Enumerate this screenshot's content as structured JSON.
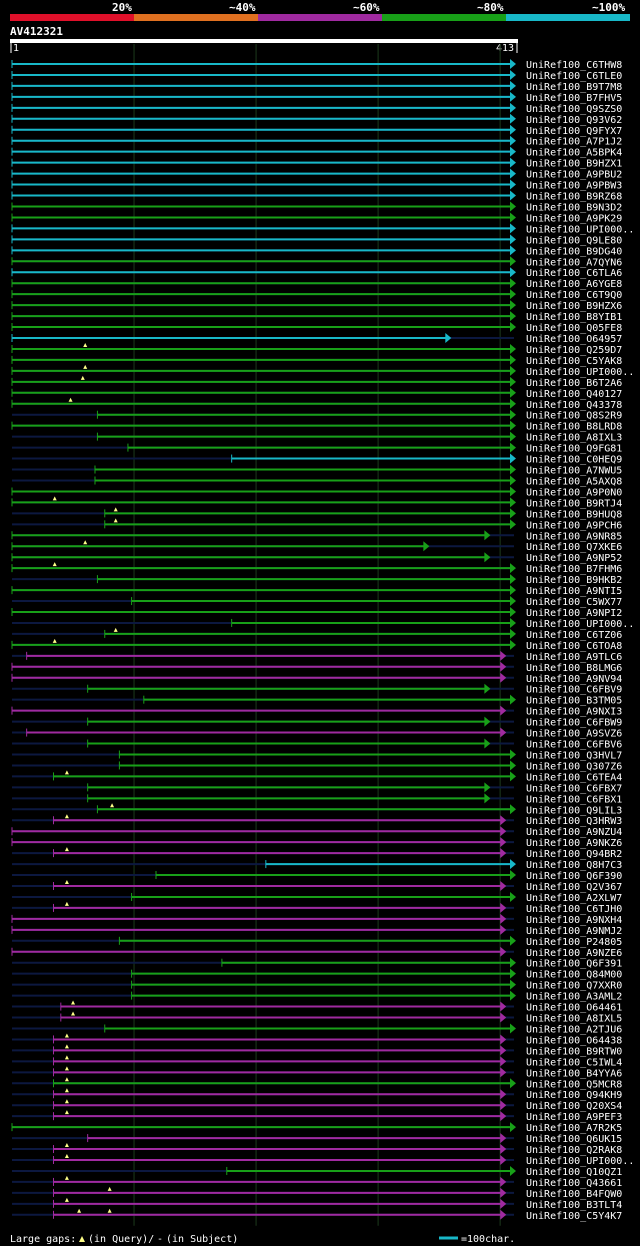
{
  "query": {
    "id": "AV412321",
    "start": "1",
    "end": "413",
    "length": 413
  },
  "scale": {
    "segments": [
      {
        "label": "20%",
        "color": "#e0102a"
      },
      {
        "label": "~40%",
        "color": "#e07020"
      },
      {
        "label": "~60%",
        "color": "#a02aa0"
      },
      {
        "label": "~80%",
        "color": "#18a018"
      },
      {
        "label": "~100%",
        "color": "#18b8c8"
      }
    ]
  },
  "legend": {
    "text_prefix": "Large gaps:",
    "text_query": "(in Query)/",
    "dash": "-",
    "text_subject": "(in Subject)",
    "scale_text": "=100char.",
    "scale_units": 100
  },
  "colors": {
    "cyan": "#18b8c8",
    "green": "#18a018",
    "purple": "#a02aa0",
    "navy": "#0c1840",
    "gap": "#ffff88"
  },
  "hits": [
    {
      "name": "UniRef100_C6THW8",
      "color": "cyan",
      "start": 0,
      "end": 413,
      "gaps": []
    },
    {
      "name": "UniRef100_C6TLE0",
      "color": "cyan",
      "start": 0,
      "end": 413,
      "gaps": []
    },
    {
      "name": "UniRef100_B9T7M8",
      "color": "cyan",
      "start": 0,
      "end": 413,
      "gaps": []
    },
    {
      "name": "UniRef100_B7FHV5",
      "color": "cyan",
      "start": 0,
      "end": 413,
      "gaps": []
    },
    {
      "name": "UniRef100_Q9SZS0",
      "color": "cyan",
      "start": 0,
      "end": 413,
      "gaps": []
    },
    {
      "name": "UniRef100_Q93V62",
      "color": "cyan",
      "start": 0,
      "end": 413,
      "gaps": []
    },
    {
      "name": "UniRef100_Q9FYX7",
      "color": "cyan",
      "start": 0,
      "end": 413,
      "gaps": []
    },
    {
      "name": "UniRef100_A7P1J2",
      "color": "cyan",
      "start": 0,
      "end": 413,
      "gaps": []
    },
    {
      "name": "UniRef100_A5BPK4",
      "color": "cyan",
      "start": 0,
      "end": 413,
      "gaps": []
    },
    {
      "name": "UniRef100_B9HZX1",
      "color": "cyan",
      "start": 0,
      "end": 413,
      "gaps": []
    },
    {
      "name": "UniRef100_A9PBU2",
      "color": "cyan",
      "start": 0,
      "end": 413,
      "gaps": []
    },
    {
      "name": "UniRef100_A9PBW3",
      "color": "cyan",
      "start": 0,
      "end": 413,
      "gaps": []
    },
    {
      "name": "UniRef100_B9RZ68",
      "color": "cyan",
      "start": 0,
      "end": 413,
      "gaps": []
    },
    {
      "name": "UniRef100_B9N3D2",
      "color": "green",
      "start": 0,
      "end": 413,
      "gaps": []
    },
    {
      "name": "UniRef100_A9PK29",
      "color": "green",
      "start": 0,
      "end": 413,
      "gaps": []
    },
    {
      "name": "UniRef100_UPI000..",
      "color": "cyan",
      "start": 0,
      "end": 413,
      "gaps": []
    },
    {
      "name": "UniRef100_Q9LE80",
      "color": "cyan",
      "start": 0,
      "end": 413,
      "gaps": []
    },
    {
      "name": "UniRef100_B9DG40",
      "color": "cyan",
      "start": 0,
      "end": 413,
      "gaps": []
    },
    {
      "name": "UniRef100_A7QYN6",
      "color": "green",
      "start": 0,
      "end": 413,
      "gaps": []
    },
    {
      "name": "UniRef100_C6TLA6",
      "color": "cyan",
      "start": 0,
      "end": 413,
      "gaps": []
    },
    {
      "name": "UniRef100_A6YGE8",
      "color": "green",
      "start": 0,
      "end": 413,
      "gaps": []
    },
    {
      "name": "UniRef100_C6T9Q0",
      "color": "green",
      "start": 0,
      "end": 413,
      "gaps": []
    },
    {
      "name": "UniRef100_B9HZX6",
      "color": "green",
      "start": 0,
      "end": 413,
      "gaps": []
    },
    {
      "name": "UniRef100_B8YIB1",
      "color": "green",
      "start": 0,
      "end": 413,
      "gaps": []
    },
    {
      "name": "UniRef100_Q05FE8",
      "color": "green",
      "start": 0,
      "end": 413,
      "gaps": []
    },
    {
      "name": "UniRef100_O64957",
      "color": "cyan",
      "start": 0,
      "end": 360,
      "gaps": []
    },
    {
      "name": "UniRef100_Q259D7",
      "color": "green",
      "start": 0,
      "end": 413,
      "gaps": [
        60
      ]
    },
    {
      "name": "UniRef100_C5YAK8",
      "color": "green",
      "start": 0,
      "end": 413,
      "gaps": []
    },
    {
      "name": "UniRef100_UPI000..",
      "color": "green",
      "start": 0,
      "end": 413,
      "gaps": [
        60
      ]
    },
    {
      "name": "UniRef100_B6T2A6",
      "color": "green",
      "start": 0,
      "end": 413,
      "gaps": [
        58
      ]
    },
    {
      "name": "UniRef100_Q40127",
      "color": "green",
      "start": 0,
      "end": 413,
      "gaps": []
    },
    {
      "name": "UniRef100_Q43378",
      "color": "green",
      "start": 0,
      "end": 413,
      "gaps": [
        48
      ]
    },
    {
      "name": "UniRef100_Q8S2R9",
      "color": "green",
      "start": 70,
      "end": 413,
      "gaps": []
    },
    {
      "name": "UniRef100_B8LRD8",
      "color": "green",
      "start": 0,
      "end": 413,
      "gaps": []
    },
    {
      "name": "UniRef100_A8IXL3",
      "color": "green",
      "start": 70,
      "end": 413,
      "gaps": []
    },
    {
      "name": "UniRef100_Q9FG81",
      "color": "green",
      "start": 95,
      "end": 413,
      "gaps": []
    },
    {
      "name": "UniRef100_C0HEQ9",
      "color": "cyan",
      "start": 180,
      "end": 413,
      "gaps": []
    },
    {
      "name": "UniRef100_A7NWU5",
      "color": "green",
      "start": 68,
      "end": 413,
      "gaps": []
    },
    {
      "name": "UniRef100_A5AXQ8",
      "color": "green",
      "start": 68,
      "end": 413,
      "gaps": []
    },
    {
      "name": "UniRef100_A9P0N0",
      "color": "green",
      "start": 0,
      "end": 413,
      "gaps": []
    },
    {
      "name": "UniRef100_B9RTJ4",
      "color": "green",
      "start": 0,
      "end": 413,
      "gaps": [
        35
      ]
    },
    {
      "name": "UniRef100_B9HUQ8",
      "color": "green",
      "start": 76,
      "end": 413,
      "gaps": [
        85
      ]
    },
    {
      "name": "UniRef100_A9PCH6",
      "color": "green",
      "start": 76,
      "end": 413,
      "gaps": [
        85
      ]
    },
    {
      "name": "UniRef100_A9NR85",
      "color": "green",
      "start": 0,
      "end": 392,
      "gaps": []
    },
    {
      "name": "UniRef100_Q7XKE6",
      "color": "green",
      "start": 0,
      "end": 342,
      "gaps": [
        60
      ]
    },
    {
      "name": "UniRef100_A9NP52",
      "color": "green",
      "start": 0,
      "end": 392,
      "gaps": []
    },
    {
      "name": "UniRef100_B7FHM6",
      "color": "green",
      "start": 0,
      "end": 413,
      "gaps": [
        35
      ]
    },
    {
      "name": "UniRef100_B9HKB2",
      "color": "green",
      "start": 70,
      "end": 413,
      "gaps": []
    },
    {
      "name": "UniRef100_A9NTI5",
      "color": "green",
      "start": 0,
      "end": 413,
      "gaps": []
    },
    {
      "name": "UniRef100_C5WX77",
      "color": "green",
      "start": 98,
      "end": 413,
      "gaps": []
    },
    {
      "name": "UniRef100_A9NPI2",
      "color": "green",
      "start": 0,
      "end": 413,
      "gaps": []
    },
    {
      "name": "UniRef100_UPI000..",
      "color": "green",
      "start": 180,
      "end": 413,
      "gaps": []
    },
    {
      "name": "UniRef100_C6TZ06",
      "color": "green",
      "start": 76,
      "end": 413,
      "gaps": [
        85
      ]
    },
    {
      "name": "UniRef100_C6TOA8",
      "color": "green",
      "start": 0,
      "end": 413,
      "gaps": [
        35
      ]
    },
    {
      "name": "UniRef100_A9TLC6",
      "color": "purple",
      "start": 12,
      "end": 405,
      "gaps": []
    },
    {
      "name": "UniRef100_B8LMG6",
      "color": "purple",
      "start": 0,
      "end": 405,
      "gaps": []
    },
    {
      "name": "UniRef100_A9NV94",
      "color": "purple",
      "start": 0,
      "end": 405,
      "gaps": []
    },
    {
      "name": "UniRef100_C6FBV9",
      "color": "green",
      "start": 62,
      "end": 392,
      "gaps": []
    },
    {
      "name": "UniRef100_B3TM05",
      "color": "green",
      "start": 108,
      "end": 413,
      "gaps": []
    },
    {
      "name": "UniRef100_A9NXI3",
      "color": "purple",
      "start": 0,
      "end": 405,
      "gaps": []
    },
    {
      "name": "UniRef100_C6FBW9",
      "color": "green",
      "start": 62,
      "end": 392,
      "gaps": []
    },
    {
      "name": "UniRef100_A9SVZ6",
      "color": "purple",
      "start": 12,
      "end": 405,
      "gaps": []
    },
    {
      "name": "UniRef100_C6FBV6",
      "color": "green",
      "start": 62,
      "end": 392,
      "gaps": []
    },
    {
      "name": "UniRef100_Q3HVL7",
      "color": "green",
      "start": 88,
      "end": 413,
      "gaps": []
    },
    {
      "name": "UniRef100_Q307Z6",
      "color": "green",
      "start": 88,
      "end": 413,
      "gaps": []
    },
    {
      "name": "UniRef100_C6TEA4",
      "color": "green",
      "start": 34,
      "end": 413,
      "gaps": [
        45
      ]
    },
    {
      "name": "UniRef100_C6FBX7",
      "color": "green",
      "start": 62,
      "end": 392,
      "gaps": []
    },
    {
      "name": "UniRef100_C6FBX1",
      "color": "green",
      "start": 62,
      "end": 392,
      "gaps": []
    },
    {
      "name": "UniRef100_Q9LIL3",
      "color": "green",
      "start": 70,
      "end": 413,
      "gaps": [
        82
      ]
    },
    {
      "name": "UniRef100_Q3HRW3",
      "color": "purple",
      "start": 34,
      "end": 405,
      "gaps": [
        45
      ]
    },
    {
      "name": "UniRef100_A9NZU4",
      "color": "purple",
      "start": 0,
      "end": 405,
      "gaps": []
    },
    {
      "name": "UniRef100_A9NKZ6",
      "color": "purple",
      "start": 0,
      "end": 405,
      "gaps": []
    },
    {
      "name": "UniRef100_Q94BR2",
      "color": "purple",
      "start": 34,
      "end": 405,
      "gaps": [
        45
      ]
    },
    {
      "name": "UniRef100_Q8H7C3",
      "color": "cyan",
      "start": 208,
      "end": 413,
      "gaps": []
    },
    {
      "name": "UniRef100_Q6F390",
      "color": "green",
      "start": 118,
      "end": 413,
      "gaps": []
    },
    {
      "name": "UniRef100_Q2V367",
      "color": "purple",
      "start": 34,
      "end": 405,
      "gaps": [
        45
      ]
    },
    {
      "name": "UniRef100_A2XLW7",
      "color": "green",
      "start": 98,
      "end": 413,
      "gaps": []
    },
    {
      "name": "UniRef100_C6TJH0",
      "color": "purple",
      "start": 34,
      "end": 405,
      "gaps": [
        45
      ]
    },
    {
      "name": "UniRef100_A9NXH4",
      "color": "purple",
      "start": 0,
      "end": 405,
      "gaps": []
    },
    {
      "name": "UniRef100_A9NMJ2",
      "color": "purple",
      "start": 0,
      "end": 405,
      "gaps": []
    },
    {
      "name": "UniRef100_P24805",
      "color": "green",
      "start": 88,
      "end": 413,
      "gaps": []
    },
    {
      "name": "UniRef100_A9NZE6",
      "color": "purple",
      "start": 0,
      "end": 405,
      "gaps": []
    },
    {
      "name": "UniRef100_Q6F391",
      "color": "green",
      "start": 172,
      "end": 413,
      "gaps": []
    },
    {
      "name": "UniRef100_Q84M00",
      "color": "green",
      "start": 98,
      "end": 413,
      "gaps": []
    },
    {
      "name": "UniRef100_Q7XXR0",
      "color": "green",
      "start": 98,
      "end": 413,
      "gaps": []
    },
    {
      "name": "UniRef100_A3AML2",
      "color": "green",
      "start": 98,
      "end": 413,
      "gaps": []
    },
    {
      "name": "UniRef100_O64461",
      "color": "purple",
      "start": 40,
      "end": 405,
      "gaps": [
        50
      ]
    },
    {
      "name": "UniRef100_A8IXL5",
      "color": "purple",
      "start": 40,
      "end": 405,
      "gaps": [
        50
      ]
    },
    {
      "name": "UniRef100_A2TJU6",
      "color": "green",
      "start": 76,
      "end": 413,
      "gaps": []
    },
    {
      "name": "UniRef100_O64438",
      "color": "purple",
      "start": 34,
      "end": 405,
      "gaps": [
        45
      ]
    },
    {
      "name": "UniRef100_B9RTW0",
      "color": "purple",
      "start": 34,
      "end": 405,
      "gaps": [
        45
      ]
    },
    {
      "name": "UniRef100_C5IWL4",
      "color": "purple",
      "start": 34,
      "end": 405,
      "gaps": [
        45
      ]
    },
    {
      "name": "UniRef100_B4YYA6",
      "color": "purple",
      "start": 34,
      "end": 405,
      "gaps": [
        45
      ]
    },
    {
      "name": "UniRef100_Q5MCR8",
      "color": "green",
      "start": 34,
      "end": 413,
      "gaps": [
        45
      ]
    },
    {
      "name": "UniRef100_Q94KH9",
      "color": "purple",
      "start": 34,
      "end": 405,
      "gaps": [
        45
      ]
    },
    {
      "name": "UniRef100_Q20XS4",
      "color": "purple",
      "start": 34,
      "end": 405,
      "gaps": [
        45
      ]
    },
    {
      "name": "UniRef100_A9PEF3",
      "color": "purple",
      "start": 34,
      "end": 405,
      "gaps": [
        45
      ]
    },
    {
      "name": "UniRef100_A7R2K5",
      "color": "green",
      "start": 0,
      "end": 413,
      "gaps": []
    },
    {
      "name": "UniRef100_Q6UK15",
      "color": "purple",
      "start": 62,
      "end": 405,
      "gaps": []
    },
    {
      "name": "UniRef100_Q2RAK8",
      "color": "purple",
      "start": 34,
      "end": 405,
      "gaps": [
        45
      ]
    },
    {
      "name": "UniRef100_UPI000..",
      "color": "purple",
      "start": 34,
      "end": 405,
      "gaps": [
        45
      ]
    },
    {
      "name": "UniRef100_Q10QZ1",
      "color": "green",
      "start": 176,
      "end": 413,
      "gaps": []
    },
    {
      "name": "UniRef100_Q43661",
      "color": "purple",
      "start": 34,
      "end": 405,
      "gaps": [
        45
      ]
    },
    {
      "name": "UniRef100_B4FQW0",
      "color": "purple",
      "start": 34,
      "end": 405,
      "gaps": [
        80
      ]
    },
    {
      "name": "UniRef100_B3TLT4",
      "color": "purple",
      "start": 34,
      "end": 405,
      "gaps": [
        45
      ]
    },
    {
      "name": "UniRef100_C5Y4K7",
      "color": "purple",
      "start": 34,
      "end": 405,
      "gaps": [
        55,
        80
      ]
    }
  ]
}
